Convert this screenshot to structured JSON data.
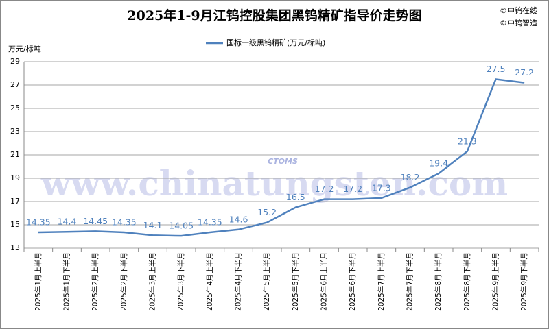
{
  "chart_data": {
    "type": "line",
    "title": "2025年1-9月江钨控股集团黑钨精矿指导价走势图",
    "copyright": [
      "©中钨在线",
      "©中钨智造"
    ],
    "watermark": "www.chinatungsten.com",
    "logo_text": "CTOMS",
    "ylabel": "万元/标吨",
    "categories": [
      "2025年1月上半月",
      "2025年1月下半月",
      "2025年2月上半月",
      "2025年2月下半月",
      "2025年3月上半月",
      "2025年3月下半月",
      "2025年4月上半月",
      "2025年4月下半月",
      "2025年5月上半月",
      "2025年5月下半月",
      "2025年6月上半月",
      "2025年6月下半月",
      "2025年7月上半月",
      "2025年7月下半月",
      "2025年8月上半月",
      "2025年8月下半月",
      "2025年9月上半月",
      "2025年9月下半月"
    ],
    "series": [
      {
        "name": "国标一级黑钨精矿(万元/标吨)",
        "color": "#4f81bd",
        "values": [
          14.35,
          14.4,
          14.45,
          14.35,
          14.1,
          14.05,
          14.35,
          14.6,
          15.2,
          16.5,
          17.2,
          17.2,
          17.3,
          18.2,
          19.4,
          21.3,
          27.5,
          27.2
        ]
      }
    ],
    "ylim": [
      13,
      29
    ],
    "yticks": [
      13,
      15,
      17,
      19,
      21,
      23,
      25,
      27,
      29
    ],
    "grid": true,
    "legend": "top"
  }
}
